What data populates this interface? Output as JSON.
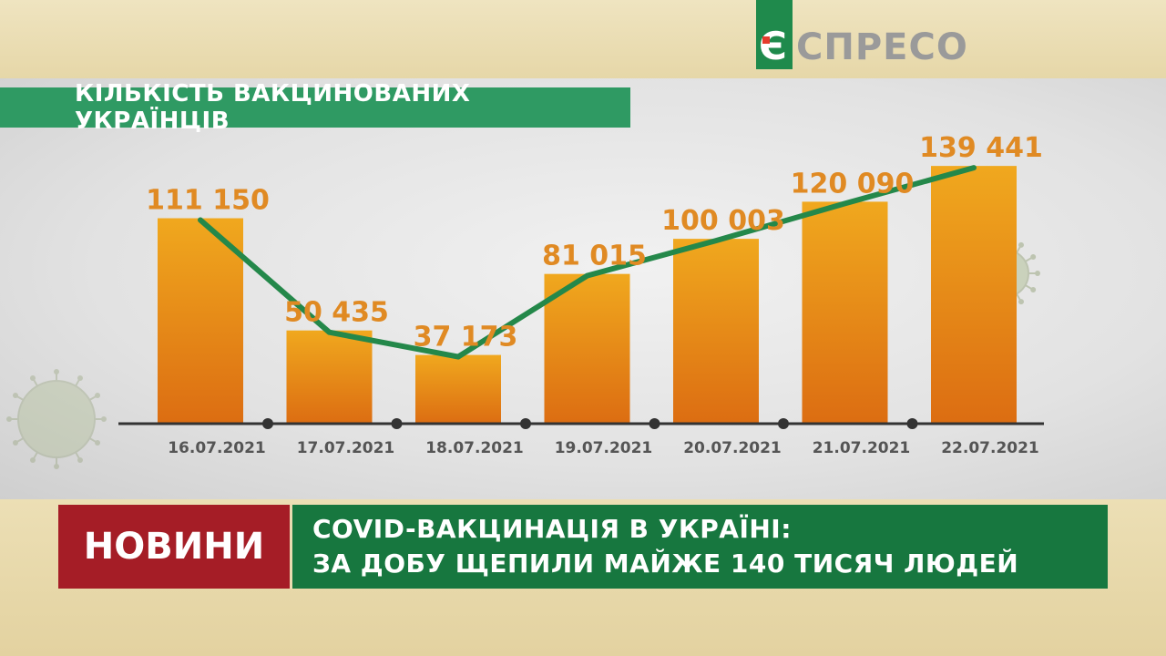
{
  "logo": {
    "letter": "Є",
    "text": "СПРЕСО"
  },
  "lower_third": {
    "tag": "НОВИНИ",
    "headline_line1": "COVID-ВАКЦИНАЦІЯ В УКРАЇНІ:",
    "headline_line2": "ЗА ДОБУ ЩЕПИЛИ МАЙЖЕ 140 ТИСЯЧ ЛЮДЕЙ"
  },
  "chart_data": {
    "type": "bar",
    "title": "КІЛЬКІСТЬ ВАКЦИНОВАНИХ УКРАЇНЦІВ",
    "categories": [
      "16.07.2021",
      "17.07.2021",
      "18.07.2021",
      "19.07.2021",
      "20.07.2021",
      "21.07.2021",
      "22.07.2021"
    ],
    "values": [
      111150,
      50435,
      37173,
      81015,
      100003,
      120090,
      139441
    ],
    "data_labels": [
      "111 150",
      "50 435",
      "37 173",
      "81 015",
      "100 003",
      "120 090",
      "139 441"
    ],
    "trend_line": true,
    "ylim": [
      0,
      140000
    ],
    "grid": false,
    "colors": {
      "bar_top": "#f0a81e",
      "bar_bottom": "#dc6d12",
      "line": "#24884a",
      "label": "#e08a23"
    }
  }
}
